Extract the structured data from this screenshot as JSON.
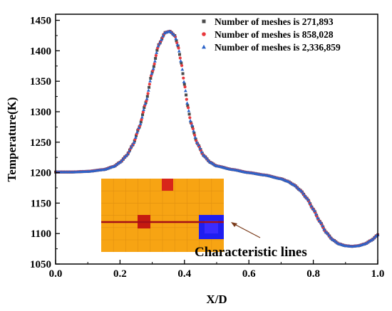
{
  "chart_data": {
    "type": "scatter",
    "xlabel": "X/D",
    "ylabel": "Temperature(K)",
    "xlim": [
      0.0,
      1.0
    ],
    "ylim": [
      1050,
      1460
    ],
    "x_ticks": [
      "0.0",
      "0.2",
      "0.4",
      "0.6",
      "0.8",
      "1.0"
    ],
    "y_ticks": [
      "1050",
      "1100",
      "1150",
      "1200",
      "1250",
      "1300",
      "1350",
      "1400",
      "1450"
    ],
    "grid": false,
    "legend_position": "top-right",
    "series": [
      {
        "name": "Number of meshes is 271,893",
        "marker": "square",
        "color": "#4a4a4a"
      },
      {
        "name": "Number of meshes is 858,028",
        "marker": "circle",
        "color": "#e8383d"
      },
      {
        "name": "Number of meshes is 2,336,859",
        "marker": "triangle",
        "color": "#2b63c9"
      }
    ],
    "profile_x": [
      0.0,
      0.05,
      0.1,
      0.15,
      0.18,
      0.2,
      0.22,
      0.24,
      0.26,
      0.28,
      0.3,
      0.32,
      0.34,
      0.355,
      0.37,
      0.38,
      0.39,
      0.4,
      0.41,
      0.42,
      0.44,
      0.46,
      0.48,
      0.5,
      0.55,
      0.6,
      0.65,
      0.7,
      0.72,
      0.74,
      0.76,
      0.78,
      0.8,
      0.82,
      0.84,
      0.86,
      0.88,
      0.9,
      0.92,
      0.94,
      0.96,
      0.98,
      1.0
    ],
    "profile_y": [
      1201,
      1201,
      1202,
      1205,
      1210,
      1217,
      1228,
      1246,
      1275,
      1315,
      1365,
      1410,
      1430,
      1432,
      1425,
      1408,
      1380,
      1345,
      1310,
      1282,
      1248,
      1228,
      1217,
      1211,
      1205,
      1200,
      1196,
      1190,
      1186,
      1180,
      1171,
      1158,
      1140,
      1120,
      1102,
      1090,
      1083,
      1080,
      1079,
      1080,
      1083,
      1089,
      1098
    ],
    "annotation": "Characteristic lines"
  }
}
